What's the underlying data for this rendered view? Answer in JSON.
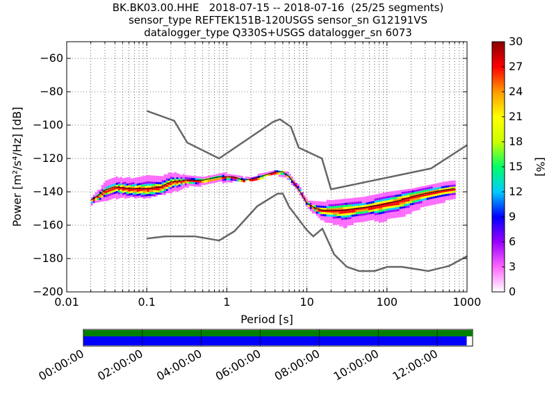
{
  "title_lines": [
    "BK.BK03.00.HHE   2018-07-15 -- 2018-07-16  (25/25 segments)",
    "sensor_type REFTEK151B-120USGS sensor_sn G12191VS",
    "datalogger_type Q330S+USGS datalogger_sn 6073"
  ],
  "chart_data": {
    "type": "heatmap",
    "xlabel": "Period [s]",
    "ylabel": "Power [m²/s⁴/Hz] [dB]",
    "xscale": "log",
    "xlim": [
      0.01,
      1000
    ],
    "ylim": [
      -200,
      -50
    ],
    "x_ticks": [
      0.01,
      0.1,
      1,
      10,
      100,
      1000
    ],
    "x_tick_labels": [
      "0.01",
      "0.1",
      "1",
      "10",
      "100",
      "1000"
    ],
    "y_ticks": [
      -200,
      -180,
      -160,
      -140,
      -120,
      -100,
      -80,
      -60
    ],
    "grid": true,
    "colorbar": {
      "label": "[%]",
      "range": [
        0,
        30
      ],
      "ticks": [
        0,
        3,
        6,
        9,
        12,
        15,
        18,
        21,
        24,
        27,
        30
      ],
      "colors": [
        "#ffffff",
        "#ff66ff",
        "#9900ff",
        "#0000ff",
        "#00ccff",
        "#00ff66",
        "#ccff00",
        "#ffff00",
        "#ff9900",
        "#ff0000",
        "#880000"
      ]
    },
    "noise_models": [
      {
        "period": [
          0.1,
          0.22,
          0.32,
          0.8,
          3.8,
          4.6,
          6.3,
          7.9,
          15.4,
          20,
          354,
          1000
        ],
        "power": [
          -91.5,
          -97.4,
          -110.5,
          -120,
          -98,
          -96.5,
          -101,
          -113.5,
          -120,
          -138.5,
          -126,
          -112
        ]
      },
      {
        "period": [
          0.1,
          0.17,
          0.4,
          0.8,
          1.24,
          2.4,
          4.3,
          5,
          6,
          10,
          12,
          15.6,
          21.9,
          31.6,
          45,
          70,
          101,
          154,
          328,
          600,
          1000
        ],
        "power": [
          -168,
          -166.7,
          -166.7,
          -169.2,
          -163.7,
          -148.6,
          -141.1,
          -141.1,
          -149.0,
          -163.0,
          -166.7,
          -162.1,
          -177.5,
          -185.0,
          -187.5,
          -187.5,
          -185.0,
          -185.0,
          -187.5,
          -184.4,
          -178.6
        ]
      }
    ],
    "psd_mode": {
      "period": [
        0.02,
        0.025,
        0.03,
        0.04,
        0.06,
        0.1,
        0.15,
        0.2,
        0.3,
        0.5,
        0.8,
        1.2,
        1.6,
        2.2,
        3,
        4,
        5,
        6,
        8,
        10,
        13,
        16,
        20,
        30,
        40,
        60,
        80,
        100,
        150,
        200,
        300,
        500,
        700
      ],
      "power": [
        -145,
        -142,
        -139,
        -137,
        -138,
        -138,
        -137,
        -134,
        -133,
        -133,
        -131,
        -131,
        -133,
        -132,
        -130,
        -128,
        -128,
        -131,
        -139,
        -147,
        -150,
        -151,
        -151,
        -151,
        -150,
        -149,
        -148,
        -147,
        -145,
        -143,
        -141,
        -139,
        -138
      ]
    },
    "psd_upper_spread": {
      "period": [
        0.02,
        0.03,
        0.05,
        0.1,
        0.2,
        0.3,
        0.5,
        1,
        2,
        4,
        6,
        8,
        10,
        20,
        50,
        100,
        200,
        500,
        700
      ],
      "power": [
        -142,
        -132,
        -128,
        -125,
        -126,
        -130,
        -131,
        -128,
        -130,
        -127,
        -128,
        -137,
        -144,
        -145,
        -143,
        -140,
        -138,
        -134,
        -133
      ]
    },
    "psd_lower_spread": {
      "period": [
        0.02,
        0.03,
        0.05,
        0.1,
        0.2,
        0.3,
        0.5,
        1,
        2,
        4,
        6,
        8,
        10,
        15,
        20,
        30,
        40,
        60,
        80,
        100,
        150,
        200,
        300,
        500,
        700
      ],
      "power": [
        -147,
        -145,
        -143,
        -143,
        -140,
        -138,
        -137,
        -134,
        -133,
        -129,
        -133,
        -142,
        -149,
        -157,
        -162,
        -166,
        -161,
        -158,
        -163,
        -160,
        -160,
        -157,
        -152,
        -148,
        -144
      ]
    },
    "segments": [
      {
        "label": "00:00:00",
        "hours": 0
      },
      {
        "label": "02:00:00",
        "hours": 2
      },
      {
        "label": "04:00:00",
        "hours": 4
      },
      {
        "label": "06:00:00",
        "hours": 6
      },
      {
        "label": "08:00:00",
        "hours": 8
      },
      {
        "label": "10:00:00",
        "hours": 10
      },
      {
        "label": "12:00:00",
        "hours": 12
      }
    ],
    "segment_bar": {
      "hours_range": [
        0,
        13.2
      ],
      "data_coverage_hours": [
        0,
        13.2
      ],
      "processed_hours": [
        0,
        13.0
      ],
      "data_color": "#008000",
      "processed_color": "#0000ff"
    }
  }
}
